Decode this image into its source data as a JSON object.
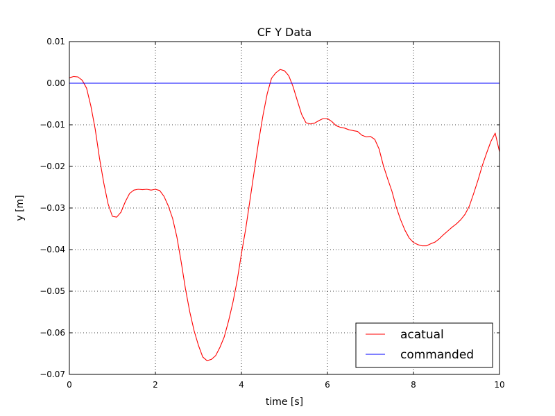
{
  "chart_data": {
    "type": "line",
    "title": "CF Y Data",
    "xlabel": "time [s]",
    "ylabel": "y [m]",
    "xlim": [
      0,
      10
    ],
    "ylim": [
      -0.07,
      0.01
    ],
    "x_ticks": [
      0,
      2,
      4,
      6,
      8,
      10
    ],
    "x_tick_labels": [
      "0",
      "2",
      "4",
      "6",
      "8",
      "10"
    ],
    "y_ticks": [
      0.01,
      0.0,
      -0.01,
      -0.02,
      -0.03,
      -0.04,
      -0.05,
      -0.06,
      -0.07
    ],
    "y_tick_labels": [
      "0.01",
      "0.00",
      "−0.01",
      "−0.02",
      "−0.03",
      "−0.04",
      "−0.05",
      "−0.06",
      "−0.07"
    ],
    "grid": true,
    "legend_position": "bottom-right",
    "series": [
      {
        "name": "acatual",
        "color": "#ff0000",
        "x": [
          0.0,
          0.1,
          0.2,
          0.3,
          0.4,
          0.5,
          0.6,
          0.7,
          0.8,
          0.9,
          1.0,
          1.1,
          1.2,
          1.3,
          1.4,
          1.5,
          1.6,
          1.7,
          1.8,
          1.9,
          2.0,
          2.1,
          2.2,
          2.3,
          2.4,
          2.5,
          2.6,
          2.7,
          2.8,
          2.9,
          3.0,
          3.1,
          3.2,
          3.3,
          3.4,
          3.5,
          3.6,
          3.7,
          3.8,
          3.9,
          4.0,
          4.1,
          4.2,
          4.3,
          4.4,
          4.5,
          4.6,
          4.7,
          4.8,
          4.9,
          5.0,
          5.1,
          5.2,
          5.3,
          5.4,
          5.5,
          5.6,
          5.7,
          5.8,
          5.9,
          6.0,
          6.1,
          6.2,
          6.3,
          6.4,
          6.5,
          6.6,
          6.7,
          6.8,
          6.9,
          7.0,
          7.1,
          7.2,
          7.3,
          7.4,
          7.5,
          7.6,
          7.7,
          7.8,
          7.9,
          8.0,
          8.1,
          8.2,
          8.3,
          8.4,
          8.5,
          8.6,
          8.7,
          8.8,
          8.9,
          9.0,
          9.1,
          9.2,
          9.3,
          9.4,
          9.5,
          9.6,
          9.7,
          9.8,
          9.9,
          10.0
        ],
        "y": [
          0.0013,
          0.0016,
          0.0015,
          0.0007,
          -0.0012,
          -0.0055,
          -0.011,
          -0.018,
          -0.024,
          -0.029,
          -0.032,
          -0.0322,
          -0.031,
          -0.0285,
          -0.0265,
          -0.0257,
          -0.0255,
          -0.0256,
          -0.0255,
          -0.0257,
          -0.0255,
          -0.0258,
          -0.0272,
          -0.0295,
          -0.0325,
          -0.037,
          -0.043,
          -0.0495,
          -0.055,
          -0.0595,
          -0.063,
          -0.0658,
          -0.0667,
          -0.0664,
          -0.0655,
          -0.0635,
          -0.061,
          -0.0572,
          -0.0528,
          -0.0475,
          -0.041,
          -0.035,
          -0.028,
          -0.021,
          -0.014,
          -0.0078,
          -0.0025,
          0.0012,
          0.0025,
          0.0033,
          0.003,
          0.0018,
          -0.0008,
          -0.0042,
          -0.0075,
          -0.0095,
          -0.0098,
          -0.0096,
          -0.009,
          -0.0085,
          -0.0085,
          -0.0092,
          -0.0102,
          -0.0106,
          -0.0108,
          -0.0112,
          -0.0114,
          -0.0116,
          -0.0125,
          -0.0129,
          -0.0128,
          -0.0135,
          -0.0158,
          -0.0198,
          -0.023,
          -0.026,
          -0.0298,
          -0.0328,
          -0.0353,
          -0.0372,
          -0.0383,
          -0.0388,
          -0.0391,
          -0.0391,
          -0.0386,
          -0.0382,
          -0.0374,
          -0.0364,
          -0.0355,
          -0.0346,
          -0.0338,
          -0.0328,
          -0.0315,
          -0.0295,
          -0.0265,
          -0.0233,
          -0.0198,
          -0.0168,
          -0.014,
          -0.012,
          -0.0165
        ]
      },
      {
        "name": "commanded",
        "color": "#0000ff",
        "x": [
          0,
          10
        ],
        "y": [
          0.0,
          0.0
        ]
      }
    ]
  }
}
